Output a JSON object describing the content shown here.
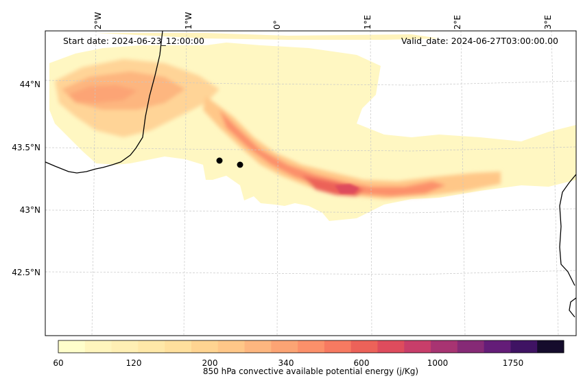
{
  "map": {
    "start_date": "Start date: 2024-06-23_12:00:00",
    "valid_date": "Valid_date: 2024-06-27T03:00:00.00",
    "lon_labels": [
      "2°W",
      "1°W",
      "0°",
      "1°E",
      "2°E",
      "3°E"
    ],
    "lat_labels": [
      "44°N",
      "43.5°N",
      "43°N",
      "42.5°N"
    ],
    "markers": [
      "station-marker",
      "station-marker"
    ]
  },
  "colorbar": {
    "label": "850 hPa convective available potential energy (j/Kg)",
    "tick_labels": [
      "60",
      "120",
      "200",
      "340",
      "600",
      "1000",
      "1750"
    ],
    "colors": [
      "#fffecb",
      "#fff5bd",
      "#ffefb4",
      "#ffe8a8",
      "#ffe09d",
      "#ffd491",
      "#ffc788",
      "#fdb67f",
      "#fca474",
      "#fc906a",
      "#f77a61",
      "#ec6259",
      "#de4c5d",
      "#c83e6a",
      "#a83472",
      "#862a76",
      "#641d78",
      "#3f1363",
      "#150c2c"
    ]
  },
  "colors": {
    "coast": "#000000",
    "grid": "#c8c8c8"
  }
}
